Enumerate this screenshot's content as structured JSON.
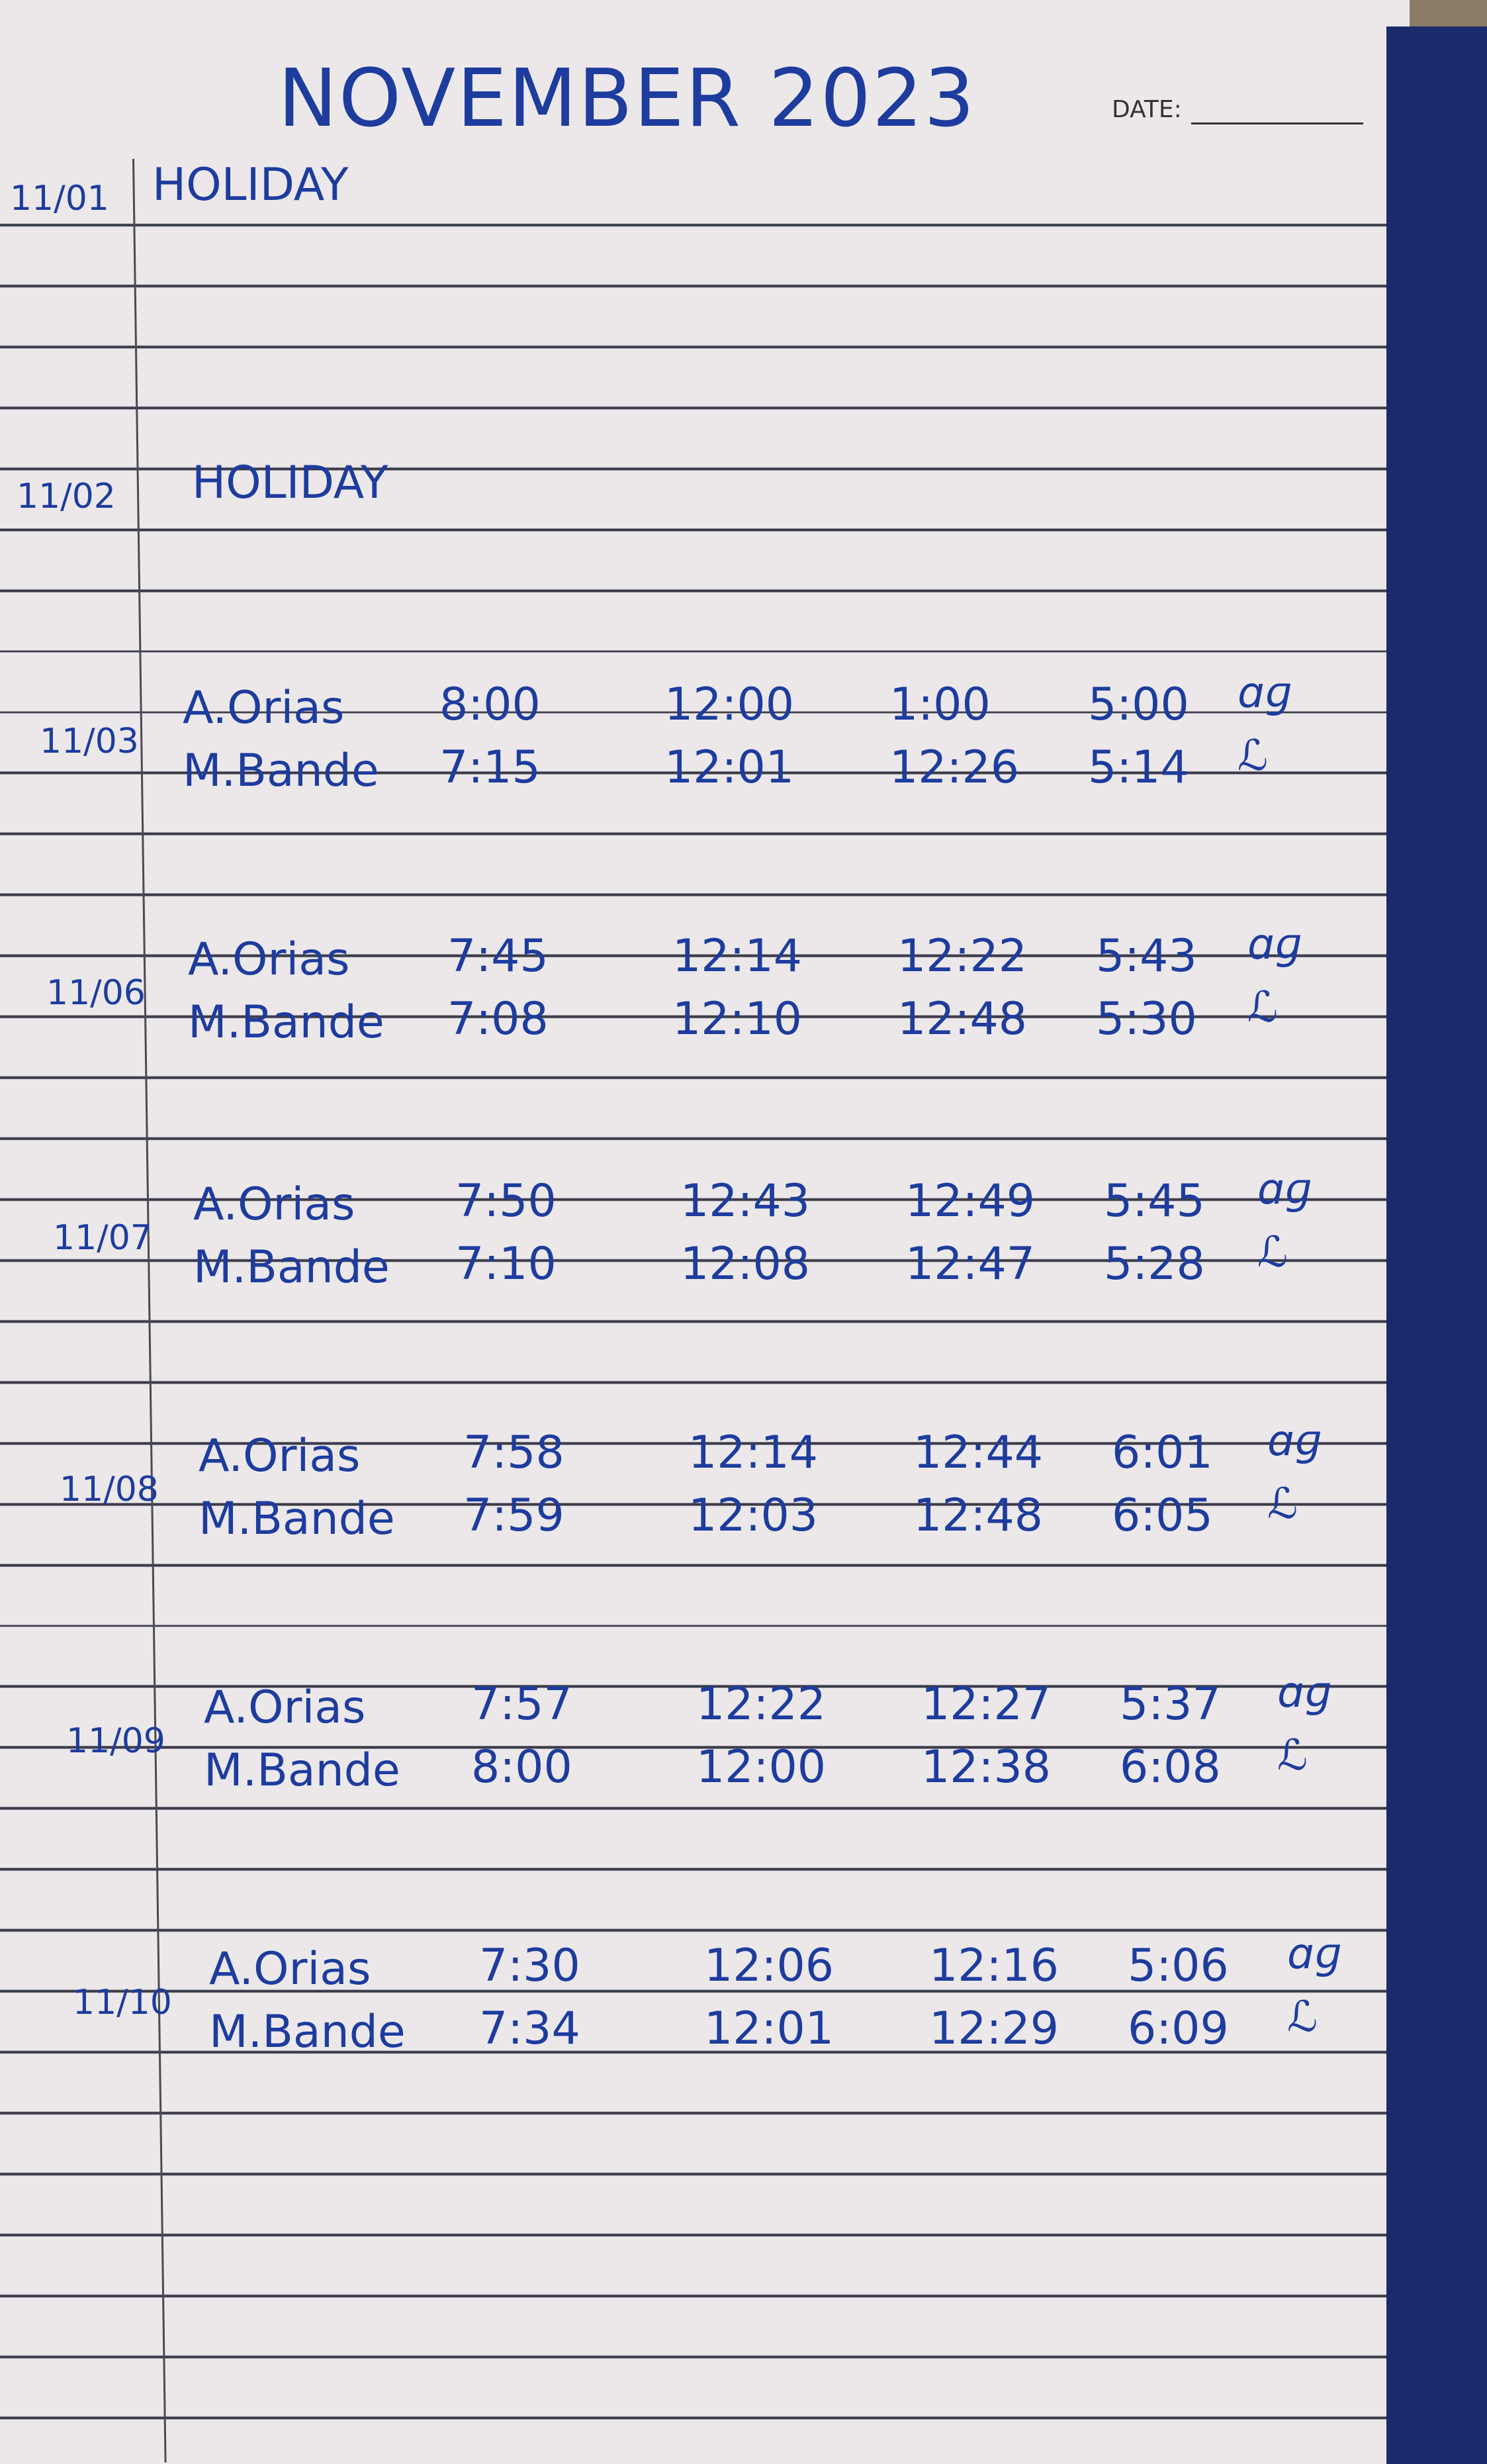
{
  "header": {
    "title": "NOVEMBER 2023",
    "date_label": "DATE:"
  },
  "colors": {
    "ink": "#1d3c9e",
    "cover": "#1b2a6b",
    "paper": "#ece8ea"
  },
  "entries": [
    {
      "date": "11/01",
      "note": "HOLIDAY"
    },
    {
      "date": "11/02",
      "note": "HOLIDAY"
    },
    {
      "date": "11/03",
      "rows": [
        {
          "name": "A.Orias",
          "times": [
            "8:00",
            "12:00",
            "1:00",
            "5:00"
          ]
        },
        {
          "name": "M.Bande",
          "times": [
            "7:15",
            "12:01",
            "12:26",
            "5:14"
          ]
        }
      ]
    },
    {
      "date": "11/06",
      "rows": [
        {
          "name": "A.Orias",
          "times": [
            "7:45",
            "12:14",
            "12:22",
            "5:43"
          ]
        },
        {
          "name": "M.Bande",
          "times": [
            "7:08",
            "12:10",
            "12:48",
            "5:30"
          ]
        }
      ]
    },
    {
      "date": "11/07",
      "rows": [
        {
          "name": "A.Orias",
          "times": [
            "7:50",
            "12:43",
            "12:49",
            "5:45"
          ]
        },
        {
          "name": "M.Bande",
          "times": [
            "7:10",
            "12:08",
            "12:47",
            "5:28"
          ]
        }
      ]
    },
    {
      "date": "11/08",
      "rows": [
        {
          "name": "A.Orias",
          "times": [
            "7:58",
            "12:14",
            "12:44",
            "6:01"
          ]
        },
        {
          "name": "M.Bande",
          "times": [
            "7:59",
            "12:03",
            "12:48",
            "6:05"
          ]
        }
      ]
    },
    {
      "date": "11/09",
      "rows": [
        {
          "name": "A.Orias",
          "times": [
            "7:57",
            "12:22",
            "12:27",
            "5:37"
          ]
        },
        {
          "name": "M.Bande",
          "times": [
            "8:00",
            "12:00",
            "12:38",
            "6:08"
          ]
        }
      ]
    },
    {
      "date": "11/10",
      "rows": [
        {
          "name": "A.Orias",
          "times": [
            "7:30",
            "12:06",
            "12:16",
            "5:06"
          ]
        },
        {
          "name": "M.Bande",
          "times": [
            "7:34",
            "12:01",
            "12:29",
            "6:09"
          ]
        }
      ]
    }
  ]
}
